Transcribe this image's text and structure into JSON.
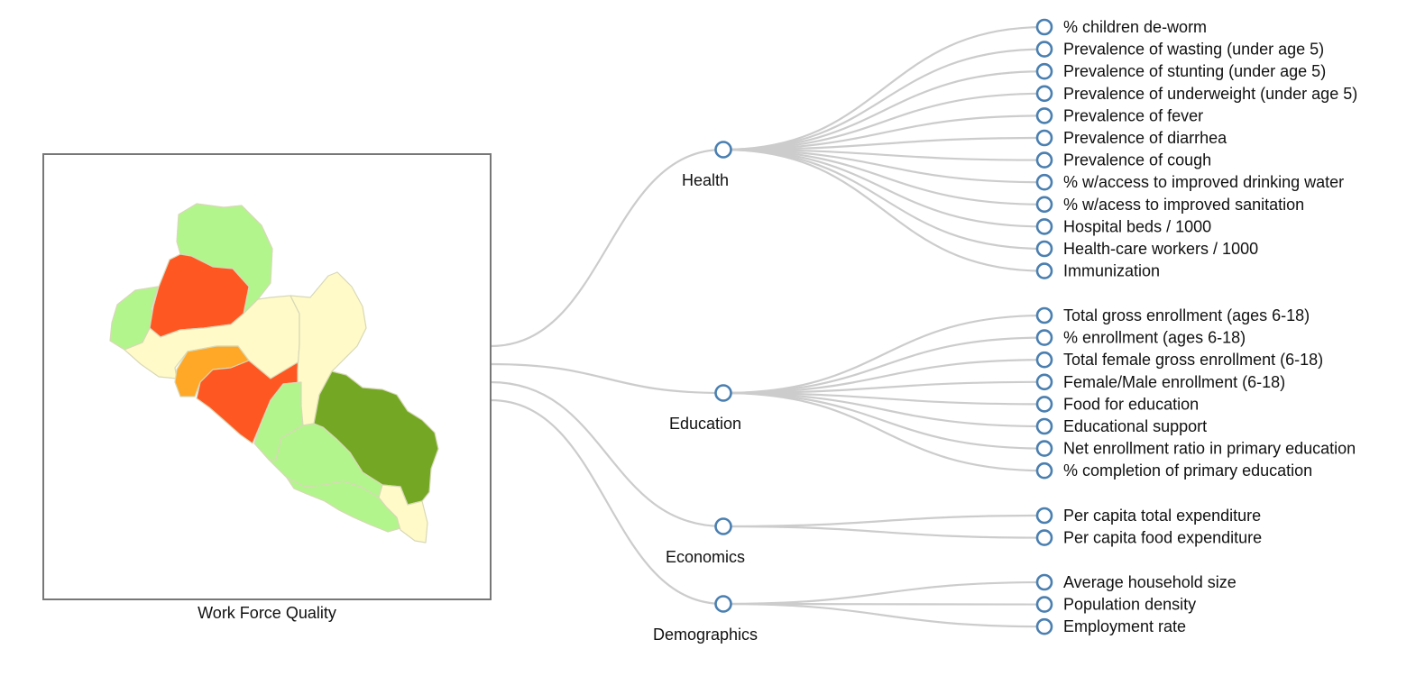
{
  "map": {
    "caption": "Work Force Quality",
    "colors": {
      "red": "#ff5722",
      "orange": "#ffa726",
      "light_green": "#b2f58c",
      "dark_green": "#74a824",
      "pale_yellow": "#fffac8"
    }
  },
  "tree": {
    "node_color": "#4a7fb0",
    "link_color": "#cccccc",
    "categories": [
      {
        "label": "Health",
        "children": [
          "% children de-worm",
          "Prevalence of wasting (under age 5)",
          "Prevalence of stunting (under age 5)",
          "Prevalence of underweight (under age 5)",
          "Prevalence of fever",
          "Prevalence of diarrhea",
          "Prevalence of cough",
          "% w/access to improved drinking water",
          "% w/acess to improved sanitation",
          "Hospital beds / 1000",
          "Health-care workers / 1000",
          "Immunization"
        ]
      },
      {
        "label": "Education",
        "children": [
          "Total gross enrollment (ages 6-18)",
          "% enrollment (ages 6-18)",
          "Total female gross enrollment (6-18)",
          "Female/Male enrollment (6-18)",
          "Food for education",
          "Educational support",
          "Net enrollment ratio in primary education",
          "% completion of primary education"
        ]
      },
      {
        "label": "Economics",
        "children": [
          "Per capita total expenditure",
          "Per capita food expenditure"
        ]
      },
      {
        "label": "Demographics",
        "children": [
          "Average household size",
          "Population density",
          "Employment rate"
        ]
      }
    ]
  }
}
